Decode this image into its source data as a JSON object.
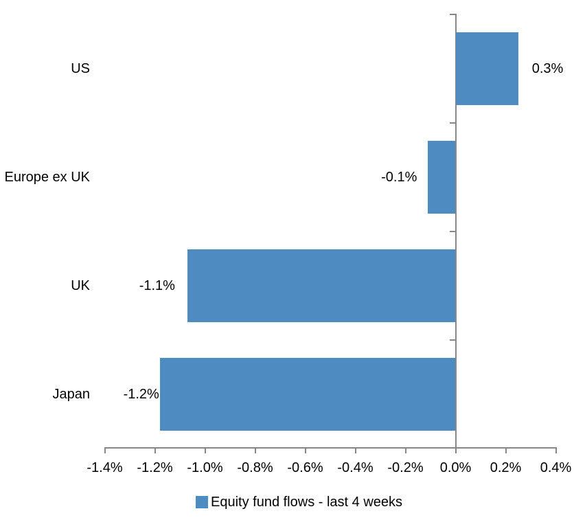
{
  "chart_data": {
    "type": "bar",
    "orientation": "horizontal",
    "categories": [
      "US",
      "Europe ex UK",
      "UK",
      "Japan"
    ],
    "values": [
      0.25,
      -0.11,
      -1.07,
      -1.18
    ],
    "data_labels": [
      "0.3%",
      "-0.1%",
      "-1.1%",
      "-1.2%"
    ],
    "series_name": "Equity fund flows - last 4 weeks",
    "unit": "%",
    "xlim": [
      -1.4,
      0.4
    ],
    "x_tick_values": [
      -1.4,
      -1.2,
      -1.0,
      -0.8,
      -0.6,
      -0.4,
      -0.2,
      0.0,
      0.2,
      0.4
    ],
    "x_tick_labels": [
      "-1.4%",
      "-1.2%",
      "-1.0%",
      "-0.8%",
      "-0.6%",
      "-0.4%",
      "-0.2%",
      "0.0%",
      "0.2%",
      "0.4%"
    ],
    "grid": false,
    "legend_position": "bottom",
    "colors": {
      "bar": "#4E8BC0",
      "axis": "#878787",
      "text": "#000000",
      "background": "#FFFFFF"
    }
  },
  "legend": {
    "label": "Equity fund flows - last 4 weeks"
  }
}
